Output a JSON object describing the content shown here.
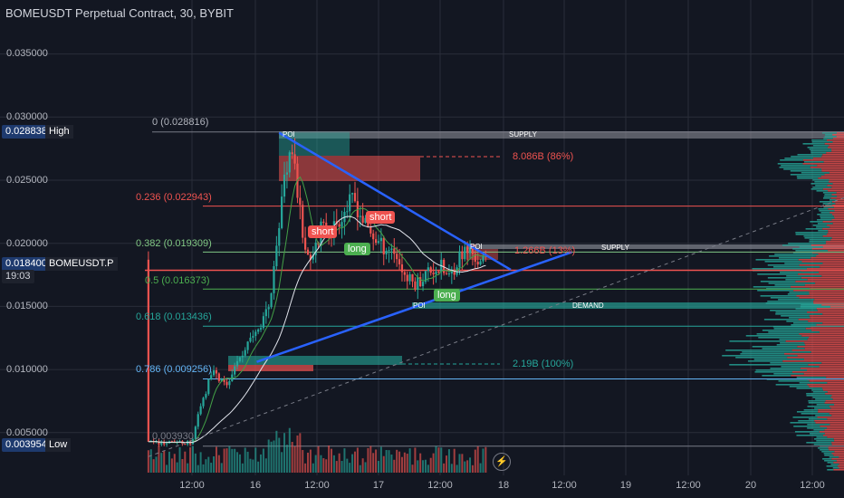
{
  "header": {
    "title": "BOMEUSDT Perpetual Contract, 30, BYBIT"
  },
  "colors": {
    "bg": "#131722",
    "up": "#26a69a",
    "down": "#ef5350",
    "trend": "#2962ff",
    "grid": "#2a2e39"
  },
  "price_axis": {
    "labels": [
      "0.035000",
      "0.030000",
      "0.025000",
      "0.020000",
      "0.015000",
      "0.010000",
      "0.005000"
    ],
    "high": {
      "value": "0.028838",
      "label": "High"
    },
    "current": {
      "value": "0.018400",
      "symbol": "BOMEUSDT.P",
      "countdown": "19:03"
    },
    "low": {
      "value": "0.003954",
      "label": "Low"
    }
  },
  "time_axis": {
    "labels": [
      "12:00",
      "16",
      "12:00",
      "17",
      "12:00",
      "18",
      "12:00",
      "19",
      "12:00",
      "20",
      "12:00"
    ]
  },
  "fibonacci": [
    {
      "label": "0 (0.028816)",
      "color": "#b2b5be"
    },
    {
      "label": "0.236 (0.022943)",
      "color": "#ef5350"
    },
    {
      "label": "0.382 (0.019309)",
      "color": "#81c784"
    },
    {
      "label": "0.5 (0.016373)",
      "color": "#4caf50"
    },
    {
      "label": "0.618 (0.013436)",
      "color": "#26a69a"
    },
    {
      "label": "0.786 (0.009256)",
      "color": "#64b5f6"
    }
  ],
  "zones": {
    "supply_top": "SUPPLY",
    "supply_mid": "SUPPLY",
    "demand": "DEMAND",
    "poi": "POI"
  },
  "measures": {
    "upper": "8.086B (86%)",
    "mid": "1.266B (13%)",
    "lower": "2.19B (100%)"
  },
  "low_marker": "0.003930",
  "signals": [
    {
      "text": "short",
      "type": "short"
    },
    {
      "text": "short",
      "type": "short"
    },
    {
      "text": "long",
      "type": "long"
    },
    {
      "text": "long",
      "type": "long"
    }
  ]
}
